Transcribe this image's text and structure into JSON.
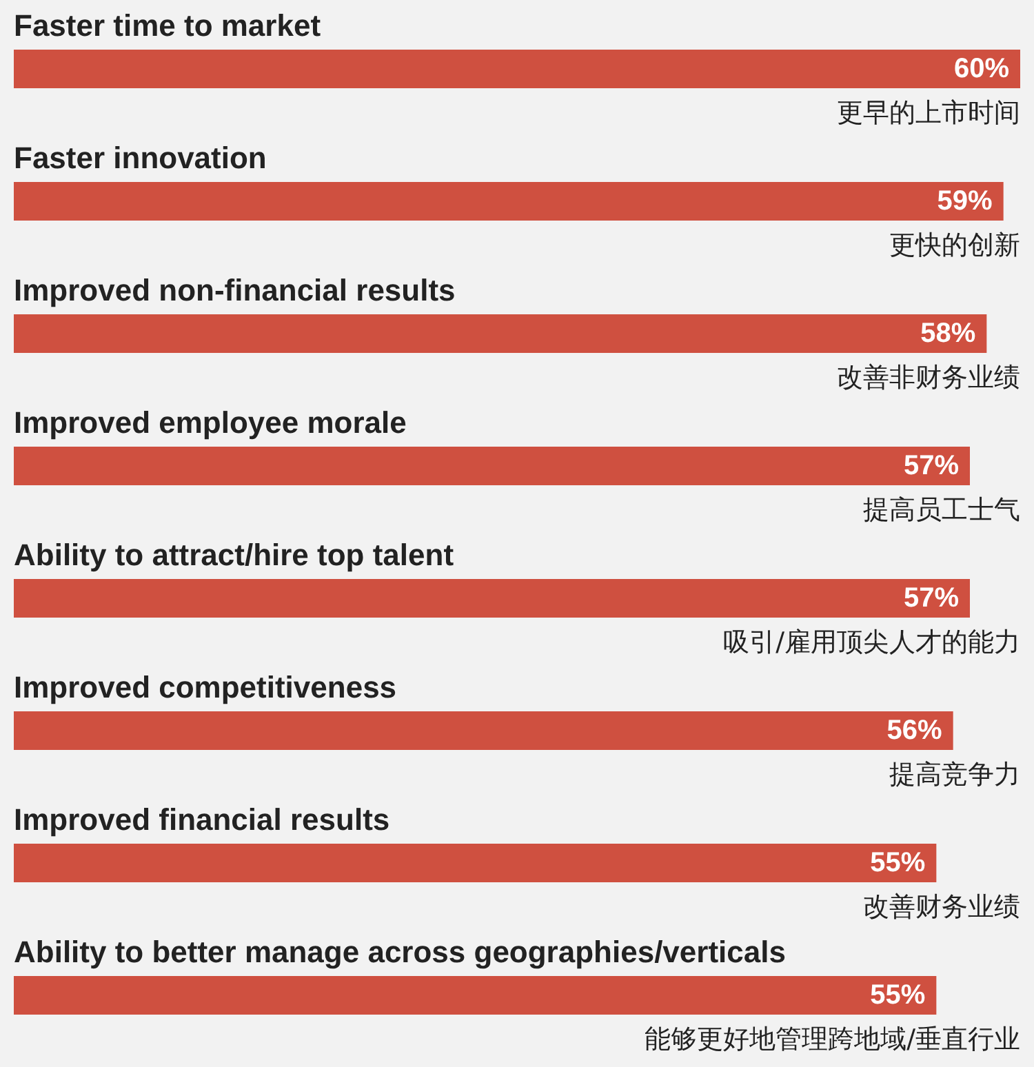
{
  "chart_data": {
    "type": "bar",
    "orientation": "horizontal",
    "color": "#cf5040",
    "categories": [
      "Faster time to market",
      "Faster innovation",
      "Improved non-financial results",
      "Improved employee morale",
      "Ability to attract/hire top talent",
      "Improved competitiveness",
      "Improved financial results",
      "Ability to better manage across geographies/verticals"
    ],
    "values": [
      60,
      59,
      58,
      57,
      57,
      56,
      55,
      55
    ],
    "value_labels": [
      "60%",
      "59%",
      "58%",
      "57%",
      "57%",
      "56%",
      "55%",
      "55%"
    ],
    "annotations": [
      "更早的上市时间",
      "更快的创新",
      "改善非财务业绩",
      "提高员工士气",
      "吸引/雇用顶尖人才的能力",
      "提高竞争力",
      "改善财务业绩",
      "能够更好地管理跨地域/垂直行业"
    ]
  }
}
